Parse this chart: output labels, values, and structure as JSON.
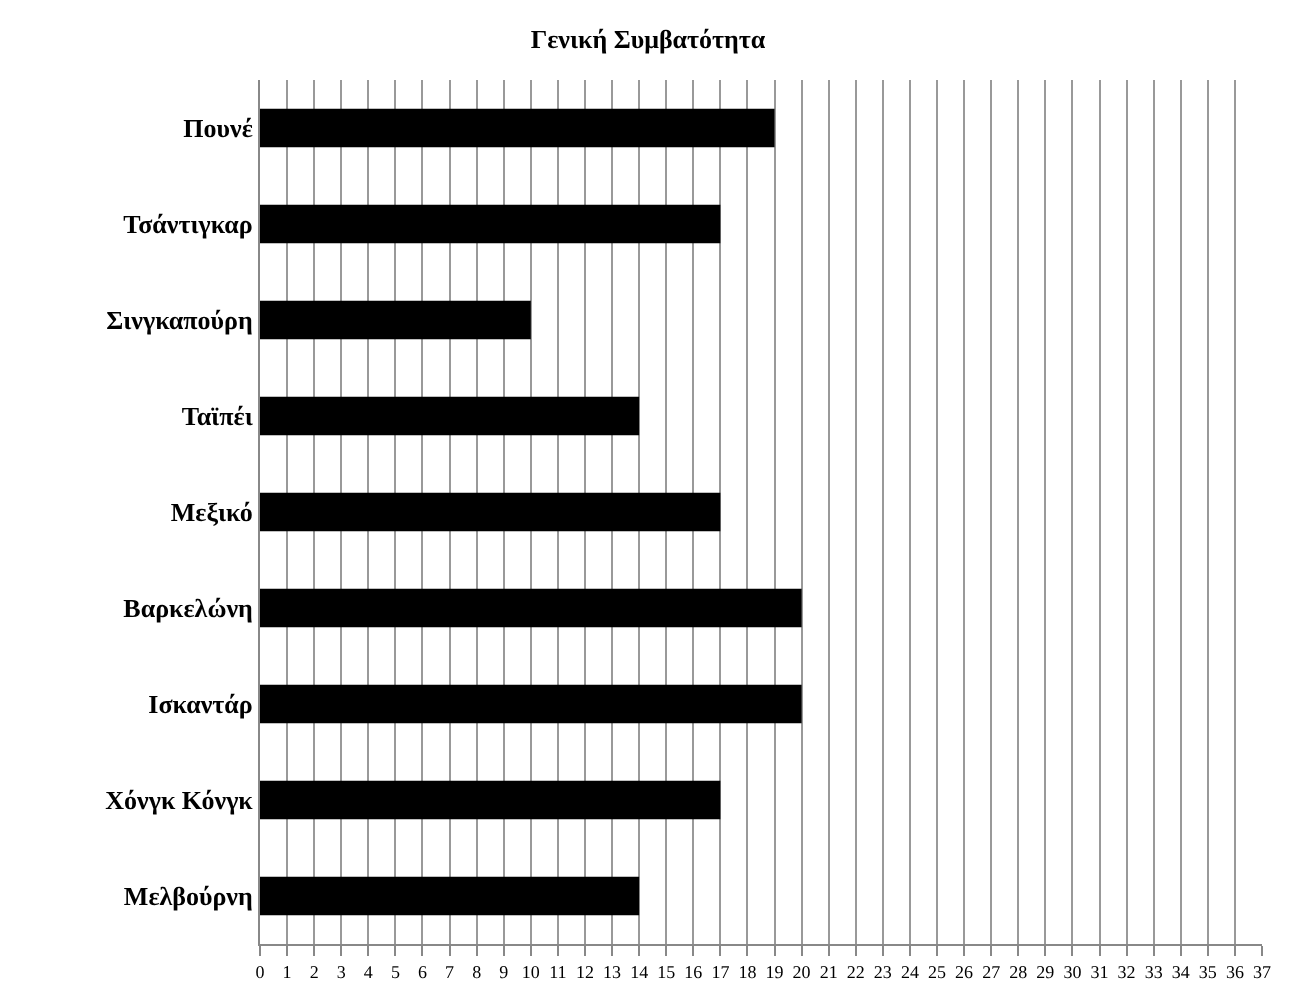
{
  "chart_data": {
    "type": "bar",
    "orientation": "horizontal",
    "title": "Γενική Συμβατότητα",
    "categories": [
      "Πουνέ",
      "Τσάντιγκαρ",
      "Σινγκαπούρη",
      "Ταϊπέι",
      "Μεξικό",
      "Βαρκελώνη",
      "Ισκαντάρ",
      "Χόνγκ Κόνγκ",
      "Μελβούρνη"
    ],
    "values": [
      19,
      17,
      10,
      14,
      17,
      20,
      20,
      17,
      14
    ],
    "color": "#000000",
    "xlim": [
      0,
      37
    ],
    "xticks": [
      0,
      1,
      2,
      3,
      4,
      5,
      6,
      7,
      8,
      9,
      10,
      11,
      12,
      13,
      14,
      15,
      16,
      17,
      18,
      19,
      20,
      21,
      22,
      23,
      24,
      25,
      26,
      27,
      28,
      29,
      30,
      31,
      32,
      33,
      34,
      35,
      36,
      37
    ],
    "grid": "x"
  }
}
